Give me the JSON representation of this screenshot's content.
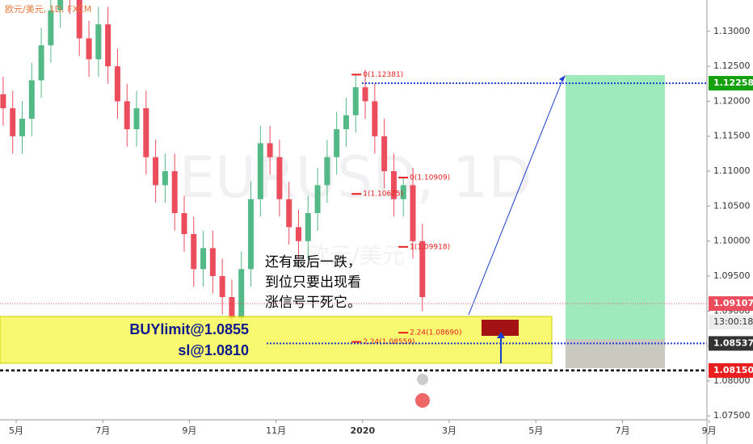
{
  "chart_data": {
    "type": "candlestick",
    "title": "欧元/美元, 1D, FXCM",
    "watermark": "EURUSD, 1D",
    "watermark_sub": "欧元/美元",
    "xlim": [
      -0.373,
      15.95
    ],
    "xticks": [
      {
        "value": 0,
        "label": "5月"
      },
      {
        "value": 2,
        "label": "7月"
      },
      {
        "value": 4,
        "label": "9月"
      },
      {
        "value": 6,
        "label": "11月"
      },
      {
        "value": 8,
        "label": "2020"
      },
      {
        "value": 10,
        "label": "3月"
      },
      {
        "value": 12,
        "label": "5月"
      },
      {
        "value": 14,
        "label": "7月"
      },
      {
        "value": 16,
        "label": "9月"
      }
    ],
    "ylim": [
      1.07445,
      1.13448
    ],
    "yticks": [
      {
        "value": 1.13,
        "label": "1.13000"
      },
      {
        "value": 1.125,
        "label": "1.12500"
      },
      {
        "value": 1.12,
        "label": "1.12000"
      },
      {
        "value": 1.115,
        "label": "1.11500"
      },
      {
        "value": 1.11,
        "label": "1.11000"
      },
      {
        "value": 1.105,
        "label": "1.10500"
      },
      {
        "value": 1.1,
        "label": "1.10000"
      },
      {
        "value": 1.095,
        "label": "1.09500"
      },
      {
        "value": 1.09,
        "label": "1.09000"
      },
      {
        "value": 1.085,
        "label": "1.08500"
      },
      {
        "value": 1.08,
        "label": "1.08000"
      },
      {
        "value": 1.075,
        "label": "1.07500"
      }
    ],
    "up_color": "#53b987",
    "down_color": "#eb4d5c",
    "x": [
      -0.3,
      -0.08,
      0.14,
      0.36,
      0.58,
      0.8,
      1.02,
      1.24,
      1.46,
      1.68,
      1.9,
      2.12,
      2.34,
      2.56,
      2.78,
      3.0,
      3.22,
      3.44,
      3.66,
      3.88,
      4.1,
      4.32,
      4.54,
      4.76,
      4.98,
      5.2,
      5.42,
      5.64,
      5.86,
      6.08,
      6.3,
      6.52,
      6.74,
      6.96,
      7.18,
      7.4,
      7.62,
      7.84,
      8.06,
      8.28,
      8.5,
      8.72,
      8.94,
      9.16,
      9.38
    ],
    "open": [
      1.121,
      1.119,
      1.115,
      1.1175,
      1.123,
      1.128,
      1.133,
      1.138,
      1.135,
      1.129,
      1.126,
      1.131,
      1.125,
      1.12,
      1.116,
      1.119,
      1.112,
      1.108,
      1.11,
      1.104,
      1.101,
      1.096,
      1.099,
      1.095,
      1.092,
      1.089,
      1.096,
      1.106,
      1.114,
      1.112,
      1.106,
      1.102,
      1.1,
      1.104,
      1.108,
      1.112,
      1.116,
      1.118,
      1.122,
      1.12,
      1.115,
      1.11,
      1.106,
      1.108,
      1.1
    ],
    "high": [
      1.1235,
      1.1215,
      1.12,
      1.1255,
      1.1305,
      1.1355,
      1.1405,
      1.1405,
      1.1375,
      1.1315,
      1.1335,
      1.1335,
      1.1275,
      1.1225,
      1.1215,
      1.1215,
      1.1145,
      1.1125,
      1.1125,
      1.1065,
      1.1035,
      1.1015,
      1.1015,
      1.0975,
      1.0945,
      1.0985,
      1.1085,
      1.1165,
      1.1165,
      1.1145,
      1.1085,
      1.1045,
      1.1065,
      1.1105,
      1.1145,
      1.1185,
      1.1205,
      1.1238,
      1.1245,
      1.1225,
      1.1175,
      1.1125,
      1.1091,
      1.1105,
      1.1025
    ],
    "low": [
      1.1165,
      1.1125,
      1.1125,
      1.115,
      1.1205,
      1.1255,
      1.1305,
      1.1325,
      1.1265,
      1.1235,
      1.1235,
      1.1225,
      1.1175,
      1.1135,
      1.1135,
      1.1095,
      1.1055,
      1.1055,
      1.1015,
      1.0985,
      1.0935,
      1.0935,
      1.0925,
      1.0895,
      1.0865,
      1.0865,
      1.0935,
      1.1035,
      1.1095,
      1.1035,
      1.0995,
      1.0975,
      1.0975,
      1.1015,
      1.1055,
      1.1095,
      1.1135,
      1.1155,
      1.1175,
      1.1125,
      1.1075,
      1.1035,
      1.1035,
      1.0975,
      1.09
    ],
    "close": [
      1.119,
      1.115,
      1.1175,
      1.123,
      1.128,
      1.133,
      1.138,
      1.135,
      1.129,
      1.126,
      1.131,
      1.125,
      1.12,
      1.116,
      1.119,
      1.112,
      1.108,
      1.11,
      1.104,
      1.101,
      1.096,
      1.099,
      1.095,
      1.092,
      1.089,
      1.096,
      1.106,
      1.114,
      1.112,
      1.106,
      1.102,
      1.1,
      1.104,
      1.108,
      1.112,
      1.116,
      1.118,
      1.122,
      1.12,
      1.115,
      1.11,
      1.106,
      1.108,
      1.1,
      1.092
    ],
    "price_labels": [
      {
        "value": 1.12258,
        "label": "1.12258",
        "color": "#13a10e"
      },
      {
        "value": 1.09107,
        "label": "1.09107",
        "color": "#eb4d5c"
      },
      {
        "value": 1.08537,
        "label": "1.08537",
        "color": "#333333"
      },
      {
        "value": 1.0815,
        "label": "1.08150",
        "color": "#e91e1e"
      }
    ],
    "countdown": "13:00:18",
    "fib_labels": [
      {
        "x": 7.97,
        "value": 1.12381,
        "label": "0(1.12381)"
      },
      {
        "x": 7.97,
        "value": 1.10675,
        "label": "1(1.10675)"
      },
      {
        "x": 9.05,
        "value": 1.10909,
        "label": "0(1.10909)"
      },
      {
        "x": 9.05,
        "value": 1.09918,
        "label": "1(1.09918)"
      },
      {
        "x": 9.05,
        "value": 1.0869,
        "label": "2.24(1.08690)"
      },
      {
        "x": 7.97,
        "value": 1.08559,
        "label": "2.24(1.08559)"
      }
    ],
    "note_lines": [
      "还有最后一跌，",
      "到位只要出现看",
      "涨信号干死它。"
    ],
    "order_lines": [
      "BUYlimit@1.0855",
      "sl@1.0810"
    ]
  }
}
